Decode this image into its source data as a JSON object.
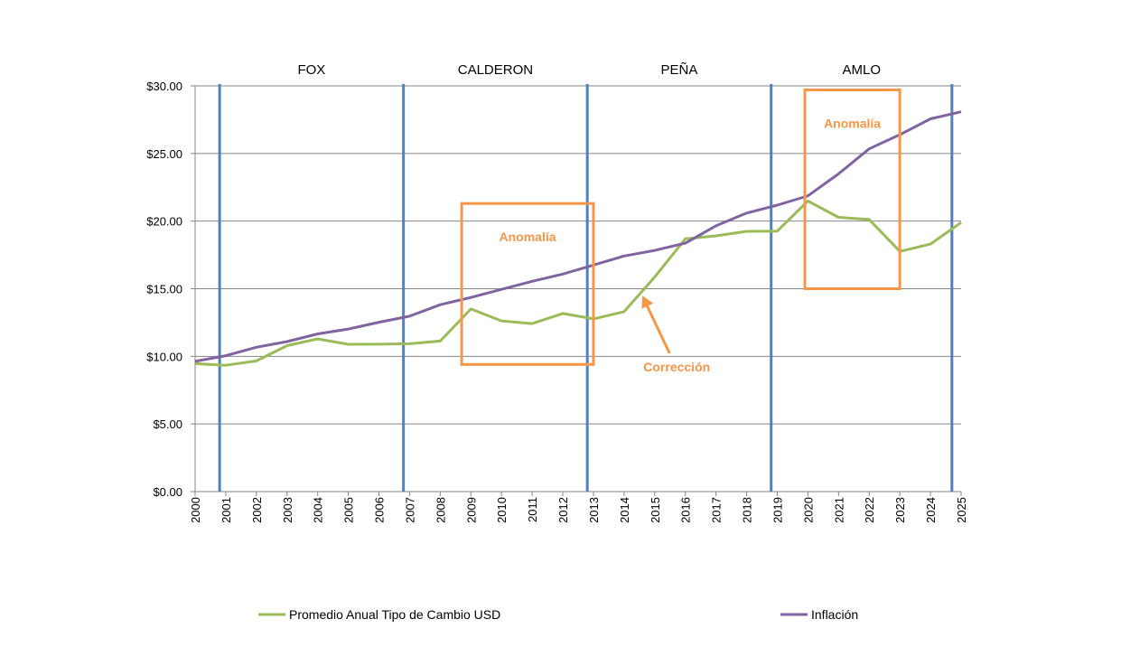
{
  "chart_data": {
    "type": "line",
    "title": "",
    "xlabel": "",
    "ylabel": "",
    "x": [
      "2000",
      "2001",
      "2002",
      "2003",
      "2004",
      "2005",
      "2006",
      "2007",
      "2008",
      "2009",
      "2010",
      "2011",
      "2012",
      "2013",
      "2014",
      "2015",
      "2016",
      "2017",
      "2018",
      "2019",
      "2020",
      "2021",
      "2022",
      "2023",
      "2024",
      "2025"
    ],
    "ylim": [
      0,
      30
    ],
    "yticks": [
      "$0.00",
      "$5.00",
      "$10.00",
      "$15.00",
      "$20.00",
      "$25.00",
      "$30.00"
    ],
    "grid": true,
    "legend_placement": "bottom",
    "series": [
      {
        "name": "Promedio Anual Tipo de Cambio USD",
        "color": "#9bbb59",
        "values": [
          9.46,
          9.34,
          9.66,
          10.79,
          11.29,
          10.89,
          10.9,
          10.93,
          11.13,
          13.5,
          12.62,
          12.42,
          13.17,
          12.77,
          13.3,
          15.87,
          18.69,
          18.91,
          19.24,
          19.26,
          21.49,
          20.28,
          20.12,
          17.76,
          18.3,
          19.9
        ]
      },
      {
        "name": "Inflación",
        "color": "#8064a2",
        "values": [
          9.63,
          10.05,
          10.67,
          11.09,
          11.66,
          12.02,
          12.52,
          12.97,
          13.82,
          14.35,
          14.95,
          15.55,
          16.08,
          16.75,
          17.42,
          17.83,
          18.37,
          19.65,
          20.59,
          21.18,
          21.87,
          23.49,
          25.34,
          26.39,
          27.56,
          28.08
        ]
      }
    ],
    "periods": [
      {
        "label": "FOX",
        "start": 2000.8,
        "end": 2006.8
      },
      {
        "label": "CALDERON",
        "start": 2006.8,
        "end": 2012.8
      },
      {
        "label": "PEÑA",
        "start": 2012.8,
        "end": 2018.8
      },
      {
        "label": "AMLO",
        "start": 2018.8,
        "end": 2024.7
      }
    ],
    "period_lines": [
      2000.8,
      2006.8,
      2012.8,
      2018.8,
      2024.7
    ],
    "period_line_color": "#4f81bd",
    "annotations": [
      {
        "label": "Anomalía",
        "x_range": [
          2008.7,
          2013.0
        ],
        "y_range": [
          9.4,
          21.3
        ],
        "color": "#f79646"
      },
      {
        "label": "Anomalía",
        "x_range": [
          2019.9,
          2023.0
        ],
        "y_range": [
          15.0,
          29.7
        ],
        "color": "#f79646"
      }
    ],
    "arrow_annotation": {
      "label": "Corrección",
      "point_x": 2014.6,
      "point_y": 14.5,
      "color": "#f79646"
    }
  }
}
